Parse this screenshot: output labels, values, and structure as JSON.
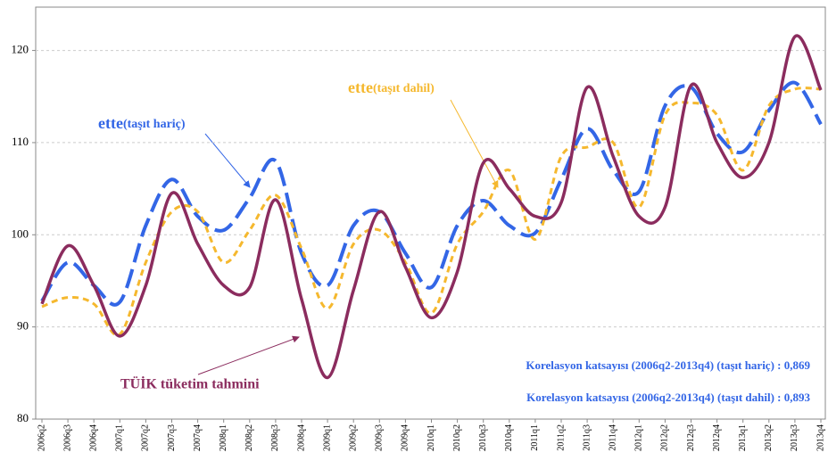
{
  "chart_data": {
    "type": "line",
    "categories": [
      "2006q2",
      "2006q3",
      "2006q4",
      "2007q1",
      "2007q2",
      "2007q3",
      "2007q4",
      "2008q1",
      "2008q2",
      "2008q3",
      "2008q4",
      "2009q1",
      "2009q2",
      "2009q3",
      "2009q4",
      "2010q1",
      "2010q2",
      "2010q3",
      "2010q4",
      "2011q1",
      "2011q2",
      "2011q3",
      "2011q4",
      "2012q1",
      "2012q2",
      "2012q3",
      "2012q4",
      "2013q1",
      "2013q2",
      "2013q3",
      "2013q4"
    ],
    "series": [
      {
        "color": "#3366e6",
        "dash": "long",
        "values": [
          92.8,
          97,
          94.5,
          92.7,
          101,
          106,
          102,
          100.5,
          104,
          108,
          98,
          94.5,
          101,
          102.5,
          98,
          94.3,
          101,
          103.7,
          101,
          100.2,
          106,
          111.5,
          107,
          104.7,
          114,
          116,
          111,
          109,
          113.5,
          116.5,
          112
        ]
      },
      {
        "color": "#f5b82e",
        "dash": "short",
        "values": [
          92.2,
          93.2,
          92.5,
          89.2,
          97,
          102.5,
          102.5,
          97,
          100.5,
          104.3,
          98.5,
          92,
          99,
          100.5,
          97,
          91.5,
          99,
          102.5,
          107,
          99.5,
          108.5,
          109.5,
          110,
          103,
          113,
          114.3,
          113,
          107,
          114,
          115.8,
          115.8
        ]
      },
      {
        "color": "#8b2c5e",
        "dash": "solid",
        "values": [
          92.5,
          98.8,
          94.5,
          89,
          94.5,
          104.5,
          99,
          94.5,
          94.3,
          103.8,
          93,
          84.5,
          94,
          102.5,
          96.5,
          91,
          96,
          107.8,
          105,
          102,
          103.5,
          116,
          108.5,
          102,
          103,
          116.2,
          110,
          106.2,
          110,
          121.5,
          115.7
        ]
      }
    ],
    "ylim": [
      80,
      124.7
    ],
    "yticks": [
      80,
      90,
      100,
      110,
      120
    ],
    "grid": true,
    "annotations": [
      {
        "main": "ette",
        "sub": "(taşıt hariç)",
        "color": "#3366e6"
      },
      {
        "main": "ette",
        "sub": "(taşıt dahil)",
        "color": "#f5b82e"
      },
      {
        "main": "TÜİK tüketim tahmini",
        "color": "#8b2c5e"
      }
    ],
    "notes": [
      "Korelasyon katsayısı (2006q2-2013q4) (taşıt hariç) : 0,869",
      "Korelasyon katsayısı (2006q2-2013q4) (taşıt dahil) : 0,893"
    ]
  }
}
